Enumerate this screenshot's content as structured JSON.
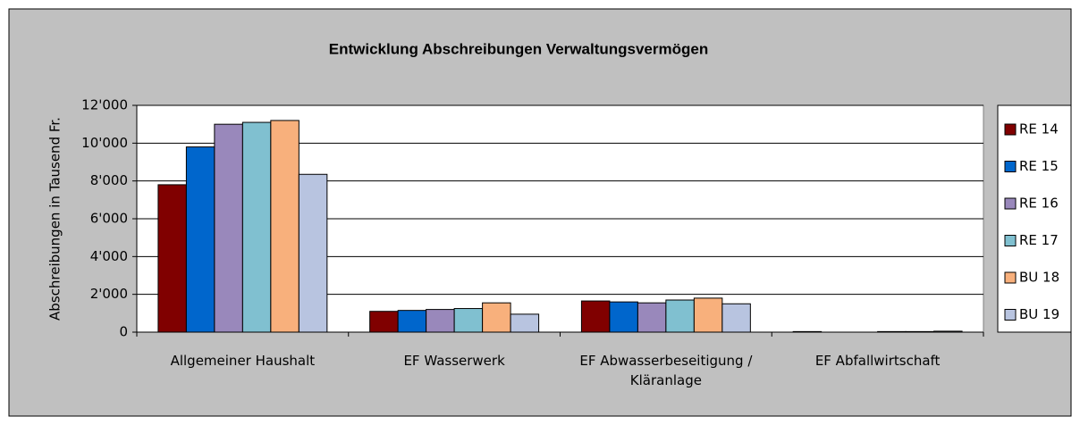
{
  "chart_data": {
    "type": "bar",
    "title": "Entwicklung Abschreibungen Verwaltungsvermögen",
    "y_label": "Abschreibungen in Tausend Fr.",
    "categories": [
      "Allgemeiner Haushalt",
      "EF Wasserwerk",
      "EF Abwasserbeseitigung / Kläranlage",
      "EF Abfallwirtschaft"
    ],
    "series": [
      {
        "name": "RE 14",
        "color": "#800000",
        "values": [
          7800,
          1100,
          1650,
          30
        ]
      },
      {
        "name": "RE 15",
        "color": "#0066cc",
        "values": [
          9800,
          1150,
          1600,
          0
        ]
      },
      {
        "name": "RE 16",
        "color": "#9988bb",
        "values": [
          11000,
          1200,
          1550,
          0
        ]
      },
      {
        "name": "RE 17",
        "color": "#80c0d0",
        "values": [
          11100,
          1250,
          1700,
          30
        ]
      },
      {
        "name": "BU 18",
        "color": "#f8b07c",
        "values": [
          11200,
          1550,
          1800,
          30
        ]
      },
      {
        "name": "BU 19",
        "color": "#b8c4e0",
        "values": [
          8350,
          950,
          1500,
          50
        ]
      }
    ],
    "ylim": [
      0,
      12000
    ],
    "yticks": [
      0,
      {
        "value": 2000,
        "label": "2'000"
      },
      {
        "value": 4000,
        "label": "4'000"
      },
      {
        "value": 6000,
        "label": "6'000"
      },
      {
        "value": 8000,
        "label": "8'000"
      },
      {
        "value": 10000,
        "label": "10'000"
      },
      {
        "value": 12000,
        "label": "12'000"
      }
    ],
    "grid": true,
    "legend": "right"
  }
}
